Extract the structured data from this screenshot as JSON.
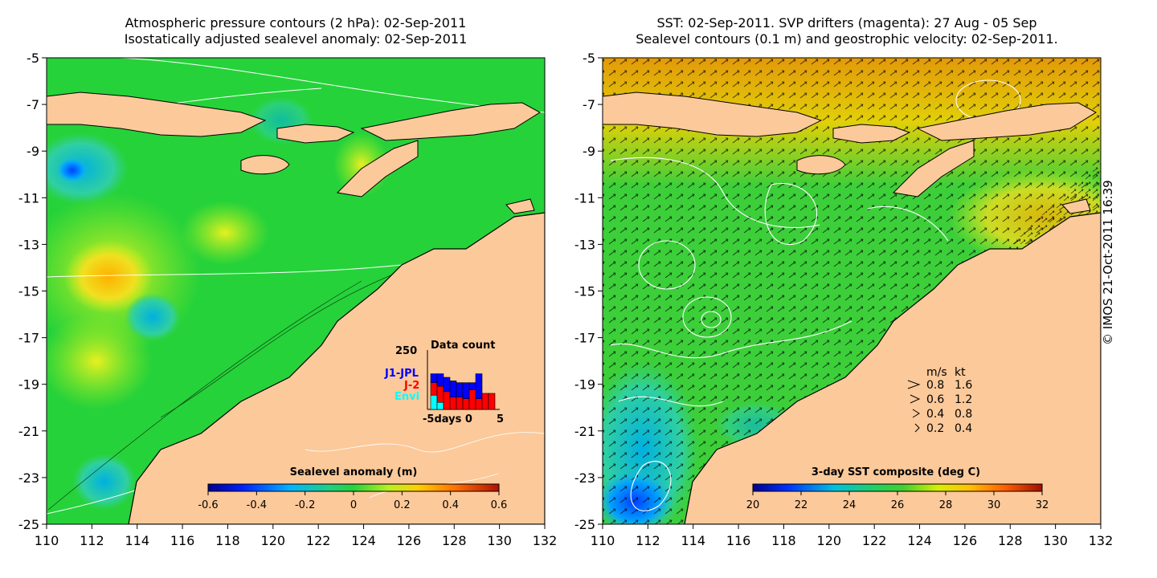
{
  "left_panel": {
    "title_line1": "Atmospheric pressure contours (2 hPa): 02-Sep-2011",
    "title_line2": "Isostatically adjusted sealevel anomaly: 02-Sep-2011",
    "colorbar": {
      "label": "Sealevel anomaly (m)",
      "ticks": [
        "-0.6",
        "-0.4",
        "-0.2",
        "0",
        "0.2",
        "0.4",
        "0.6"
      ],
      "range": [
        -0.6,
        0.6
      ]
    },
    "data_count": {
      "title": "Data count",
      "ymax_label": "250",
      "legend": [
        "J1-JPL",
        "J-2",
        "Envi"
      ],
      "legend_colors": [
        "#0000ff",
        "#ff0000",
        "#00ffff"
      ],
      "xlabel": "-5days 0",
      "xmax_label": "5",
      "stacks": [
        {
          "blue": 0.25,
          "red": 0.35,
          "cyan": 0.4
        },
        {
          "blue": 0.35,
          "red": 0.45,
          "cyan": 0.2
        },
        {
          "blue": 0.4,
          "red": 0.5,
          "cyan": 0
        },
        {
          "blue": 0.45,
          "red": 0.35,
          "cyan": 0
        },
        {
          "blue": 0.4,
          "red": 0.35,
          "cyan": 0
        },
        {
          "blue": 0.45,
          "red": 0.3,
          "cyan": 0
        },
        {
          "blue": 0.2,
          "red": 0.55,
          "cyan": 0
        },
        {
          "blue": 0.7,
          "red": 0.3,
          "cyan": 0
        },
        {
          "blue": 0,
          "red": 0.45,
          "cyan": 0
        },
        {
          "blue": 0,
          "red": 0.45,
          "cyan": 0
        }
      ]
    }
  },
  "right_panel": {
    "title_line1": "SST: 02-Sep-2011. SVP drifters (magenta): 27 Aug - 05 Sep",
    "title_line2": "Sealevel contours (0.1 m) and geostrophic velocity: 02-Sep-2011.",
    "colorbar": {
      "label": "3-day SST composite (deg C)",
      "ticks": [
        "20",
        "22",
        "24",
        "26",
        "28",
        "30",
        "32"
      ],
      "range": [
        20,
        32
      ]
    },
    "velocity_legend": {
      "header_ms": "m/s",
      "header_kt": "kt",
      "rows": [
        {
          "ms": "0.8",
          "kt": "1.6"
        },
        {
          "ms": "0.6",
          "kt": "1.2"
        },
        {
          "ms": "0.4",
          "kt": "0.8"
        },
        {
          "ms": "0.2",
          "kt": "0.4"
        }
      ]
    }
  },
  "axes": {
    "lat_ticks": [
      "-5",
      "-7",
      "-9",
      "-11",
      "-13",
      "-15",
      "-17",
      "-19",
      "-21",
      "-23",
      "-25"
    ],
    "lon_ticks": [
      "110",
      "112",
      "114",
      "116",
      "118",
      "120",
      "122",
      "124",
      "126",
      "128",
      "130",
      "132"
    ]
  },
  "copyright": "© IMOS 21-Oct-2011 16:39",
  "colors": {
    "land": "#fcc99a",
    "ocean_green": "#26d23a",
    "coast": "#000000",
    "contour": "#ffffff"
  }
}
